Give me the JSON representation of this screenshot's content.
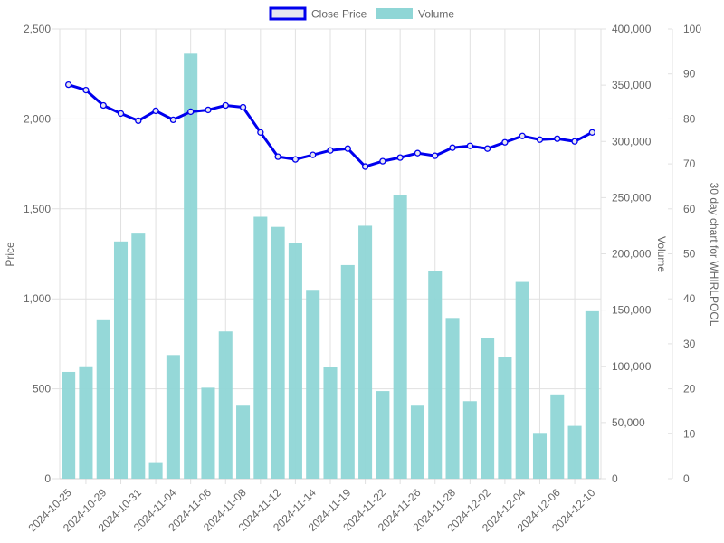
{
  "chart_data": {
    "type": "bar",
    "legend": {
      "position": "top",
      "items": [
        {
          "label": "Close Price",
          "color": "#0000ee",
          "fill": "#e6e6f0"
        },
        {
          "label": "Volume",
          "color": "#8fd6d6"
        }
      ]
    },
    "axes": {
      "price": {
        "label": "Price",
        "min": 0,
        "max": 2500,
        "ticks": [
          "0",
          "500",
          "1,000",
          "1,500",
          "2,000",
          "2,500"
        ]
      },
      "volume": {
        "label": "Volume",
        "min": 0,
        "max": 400000,
        "ticks": [
          "0",
          "50,000",
          "100,000",
          "150,000",
          "200,000",
          "250,000",
          "300,000",
          "350,000",
          "400,000"
        ]
      },
      "right": {
        "label": "30 day chart for WHIRLPOOL",
        "min": 0,
        "max": 100,
        "ticks": [
          "0",
          "10",
          "20",
          "30",
          "40",
          "50",
          "60",
          "70",
          "80",
          "90",
          "100"
        ]
      }
    },
    "grid": true,
    "x_tick_labels": [
      "2024-10-25",
      "2024-10-29",
      "2024-10-31",
      "2024-11-04",
      "2024-11-06",
      "2024-11-08",
      "2024-11-12",
      "2024-11-14",
      "2024-11-19",
      "2024-11-22",
      "2024-11-26",
      "2024-11-28",
      "2024-12-02",
      "2024-12-04",
      "2024-12-06",
      "2024-12-10"
    ],
    "series": [
      {
        "name": "Close Price",
        "type": "line",
        "axis": "price",
        "color": "#0000ee",
        "values": [
          2190,
          2160,
          2075,
          2030,
          1990,
          2045,
          1995,
          2040,
          2050,
          2075,
          2065,
          1925,
          1790,
          1775,
          1800,
          1825,
          1835,
          1735,
          1765,
          1785,
          1810,
          1795,
          1840,
          1850,
          1835,
          1870,
          1905,
          1885,
          1890,
          1875,
          1925
        ]
      },
      {
        "name": "Volume",
        "type": "bar",
        "axis": "volume",
        "color": "#8fd6d6",
        "values": [
          95000,
          100000,
          141000,
          211000,
          218000,
          14000,
          110000,
          378000,
          81000,
          131000,
          65000,
          233000,
          224000,
          210000,
          168000,
          99000,
          190000,
          225000,
          78000,
          252000,
          65000,
          185000,
          143000,
          69000,
          125000,
          108000,
          175000,
          40000,
          75000,
          47000,
          149000
        ]
      }
    ]
  }
}
